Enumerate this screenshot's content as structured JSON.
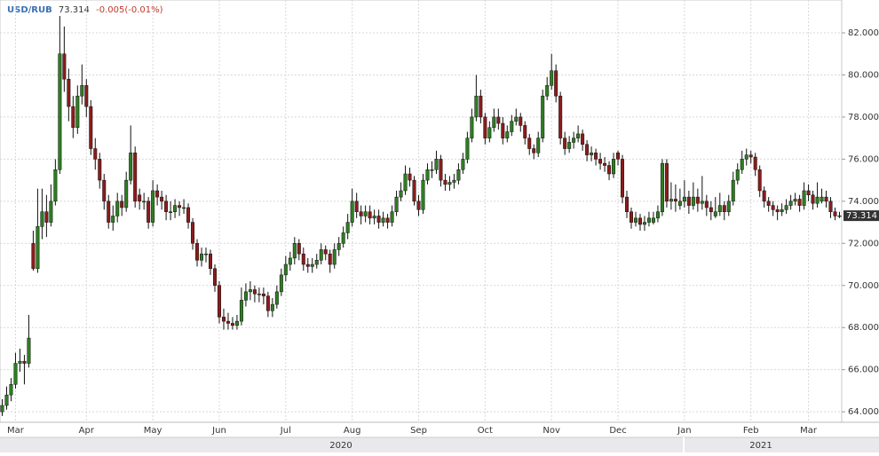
{
  "chart_data": {
    "type": "candlestick",
    "symbol": "USD/RUB",
    "last": 73.314,
    "change": "-0.005(-0.01%)",
    "up_color": "#2e7d22",
    "down_color": "#8a1c1c",
    "wick_color": "#111111",
    "grid": true,
    "ylim": [
      63.5,
      83.56
    ],
    "yticks": [
      {
        "value": 64,
        "label": "64.000"
      },
      {
        "value": 66,
        "label": "66.000"
      },
      {
        "value": 68,
        "label": "68.000"
      },
      {
        "value": 70,
        "label": "70.000"
      },
      {
        "value": 72,
        "label": "72.000"
      },
      {
        "value": 74,
        "label": "74.000"
      },
      {
        "value": 76,
        "label": "76.000"
      },
      {
        "value": 78,
        "label": "78.000"
      },
      {
        "value": 80,
        "label": "80.000"
      },
      {
        "value": 82,
        "label": "82.000"
      }
    ],
    "period_labels": [
      "2020",
      "2021"
    ],
    "categories": [
      null,
      null,
      null,
      "Mar",
      null,
      null,
      null,
      null,
      null,
      null,
      null,
      null,
      null,
      null,
      null,
      null,
      null,
      null,
      null,
      "Apr",
      null,
      null,
      null,
      null,
      null,
      null,
      null,
      null,
      null,
      null,
      null,
      null,
      null,
      null,
      "May",
      null,
      null,
      null,
      null,
      null,
      null,
      null,
      null,
      null,
      null,
      null,
      null,
      null,
      null,
      "Jun",
      null,
      null,
      null,
      null,
      null,
      null,
      null,
      null,
      null,
      null,
      null,
      null,
      null,
      null,
      "Jul",
      null,
      null,
      null,
      null,
      null,
      null,
      null,
      null,
      null,
      null,
      null,
      null,
      null,
      null,
      "Aug",
      null,
      null,
      null,
      null,
      null,
      null,
      null,
      null,
      null,
      null,
      null,
      null,
      null,
      null,
      "Sep",
      null,
      null,
      null,
      null,
      null,
      null,
      null,
      null,
      null,
      null,
      null,
      null,
      null,
      null,
      "Oct",
      null,
      null,
      null,
      null,
      null,
      null,
      null,
      null,
      null,
      null,
      null,
      null,
      null,
      null,
      "Nov",
      null,
      null,
      null,
      null,
      null,
      null,
      null,
      null,
      null,
      null,
      null,
      null,
      null,
      null,
      "Dec",
      null,
      null,
      null,
      null,
      null,
      null,
      null,
      null,
      null,
      null,
      null,
      null,
      null,
      null,
      "Jan",
      null,
      null,
      null,
      null,
      null,
      null,
      null,
      null,
      null,
      null,
      null,
      null,
      null,
      null,
      "Feb",
      null,
      null,
      null,
      null,
      null,
      null,
      null,
      null,
      null,
      null,
      null,
      null,
      "Mar",
      null,
      null,
      null,
      null,
      null,
      null,
      null
    ],
    "ohlc": [
      [
        64.0,
        64.6,
        63.8,
        64.3
      ],
      [
        64.3,
        65.2,
        64.1,
        64.8
      ],
      [
        64.8,
        65.6,
        64.5,
        65.3
      ],
      [
        65.3,
        66.8,
        65.1,
        66.3
      ],
      [
        66.3,
        67.0,
        65.9,
        66.4
      ],
      [
        66.4,
        66.7,
        65.3,
        66.3
      ],
      [
        66.3,
        68.6,
        66.1,
        67.5
      ],
      [
        72.0,
        72.6,
        70.7,
        70.8
      ],
      [
        70.8,
        74.6,
        70.6,
        72.8
      ],
      [
        72.8,
        74.6,
        72.2,
        73.5
      ],
      [
        73.5,
        74.3,
        72.3,
        73.0
      ],
      [
        73.0,
        74.8,
        72.8,
        74.0
      ],
      [
        74.0,
        76.0,
        73.8,
        75.5
      ],
      [
        75.5,
        82.8,
        75.3,
        81.0
      ],
      [
        81.0,
        82.3,
        79.2,
        79.8
      ],
      [
        79.8,
        80.3,
        77.8,
        78.5
      ],
      [
        78.5,
        79.0,
        77.0,
        77.5
      ],
      [
        77.5,
        79.5,
        77.2,
        79.0
      ],
      [
        79.0,
        80.5,
        78.6,
        79.5
      ],
      [
        79.5,
        79.8,
        78.0,
        78.5
      ],
      [
        78.5,
        78.8,
        76.2,
        76.5
      ],
      [
        76.5,
        77.0,
        75.5,
        76.0
      ],
      [
        76.0,
        76.3,
        74.6,
        75.0
      ],
      [
        75.0,
        75.3,
        73.6,
        74.0
      ],
      [
        74.0,
        74.3,
        72.7,
        73.0
      ],
      [
        73.0,
        73.8,
        72.6,
        73.3
      ],
      [
        73.3,
        74.4,
        73.0,
        74.0
      ],
      [
        74.0,
        74.3,
        73.3,
        73.7
      ],
      [
        73.7,
        75.4,
        73.5,
        75.0
      ],
      [
        75.0,
        77.6,
        74.8,
        76.3
      ],
      [
        76.3,
        76.6,
        73.7,
        74.0
      ],
      [
        74.3,
        74.6,
        73.6,
        74.0
      ],
      [
        74.0,
        74.4,
        73.6,
        74.0
      ],
      [
        74.0,
        74.2,
        72.7,
        73.0
      ],
      [
        73.0,
        75.0,
        72.8,
        74.5
      ],
      [
        74.5,
        74.8,
        73.8,
        74.2
      ],
      [
        74.2,
        74.5,
        73.6,
        74.0
      ],
      [
        74.0,
        74.3,
        73.1,
        73.5
      ],
      [
        73.5,
        74.0,
        73.1,
        73.5
      ],
      [
        73.5,
        74.1,
        73.2,
        73.8
      ],
      [
        73.8,
        74.0,
        73.3,
        73.7
      ],
      [
        73.7,
        74.1,
        73.4,
        73.7
      ],
      [
        73.7,
        73.9,
        72.7,
        73.0
      ],
      [
        73.0,
        73.2,
        71.7,
        72.0
      ],
      [
        72.0,
        72.2,
        70.9,
        71.2
      ],
      [
        71.2,
        71.8,
        70.9,
        71.5
      ],
      [
        71.5,
        71.8,
        71.1,
        71.5
      ],
      [
        71.5,
        71.7,
        70.5,
        70.8
      ],
      [
        70.8,
        71.0,
        69.7,
        70.0
      ],
      [
        70.0,
        70.2,
        68.2,
        68.5
      ],
      [
        68.5,
        68.9,
        67.9,
        68.3
      ],
      [
        68.3,
        68.7,
        67.9,
        68.2
      ],
      [
        68.2,
        68.5,
        67.9,
        68.1
      ],
      [
        68.1,
        68.6,
        67.9,
        68.3
      ],
      [
        68.3,
        69.9,
        68.1,
        69.3
      ],
      [
        69.3,
        70.1,
        69.0,
        69.7
      ],
      [
        69.7,
        70.2,
        69.3,
        69.8
      ],
      [
        69.8,
        70.0,
        69.2,
        69.6
      ],
      [
        69.6,
        69.9,
        69.2,
        69.6
      ],
      [
        69.6,
        69.9,
        69.1,
        69.5
      ],
      [
        69.5,
        69.7,
        68.5,
        68.8
      ],
      [
        68.8,
        69.4,
        68.5,
        69.1
      ],
      [
        69.1,
        70.0,
        68.9,
        69.7
      ],
      [
        69.7,
        70.8,
        69.5,
        70.5
      ],
      [
        70.5,
        71.4,
        70.2,
        71.0
      ],
      [
        71.0,
        71.6,
        70.7,
        71.3
      ],
      [
        71.3,
        72.3,
        71.0,
        72.0
      ],
      [
        72.0,
        72.2,
        71.2,
        71.5
      ],
      [
        71.5,
        71.8,
        70.7,
        71.0
      ],
      [
        71.0,
        71.3,
        70.6,
        70.9
      ],
      [
        70.9,
        71.3,
        70.6,
        71.0
      ],
      [
        71.0,
        71.5,
        70.8,
        71.2
      ],
      [
        71.2,
        72.0,
        71.0,
        71.7
      ],
      [
        71.7,
        71.9,
        71.2,
        71.5
      ],
      [
        71.5,
        71.7,
        70.6,
        71.0
      ],
      [
        71.0,
        72.0,
        70.8,
        71.7
      ],
      [
        71.7,
        72.3,
        71.4,
        72.0
      ],
      [
        72.0,
        72.8,
        71.8,
        72.5
      ],
      [
        72.5,
        73.4,
        72.2,
        73.0
      ],
      [
        73.0,
        74.6,
        72.8,
        74.0
      ],
      [
        74.0,
        74.4,
        73.2,
        73.5
      ],
      [
        73.5,
        73.8,
        72.9,
        73.3
      ],
      [
        73.3,
        73.8,
        73.0,
        73.5
      ],
      [
        73.5,
        73.8,
        72.9,
        73.2
      ],
      [
        73.2,
        73.6,
        72.9,
        73.3
      ],
      [
        73.3,
        73.6,
        72.7,
        73.0
      ],
      [
        73.0,
        73.5,
        72.8,
        73.2
      ],
      [
        73.2,
        73.4,
        72.7,
        73.0
      ],
      [
        73.0,
        73.8,
        72.8,
        73.5
      ],
      [
        73.5,
        74.5,
        73.3,
        74.2
      ],
      [
        74.2,
        74.9,
        74.0,
        74.5
      ],
      [
        74.5,
        75.7,
        74.3,
        75.3
      ],
      [
        75.3,
        75.6,
        74.7,
        75.0
      ],
      [
        75.0,
        75.2,
        73.8,
        74.0
      ],
      [
        74.0,
        74.3,
        73.3,
        73.6
      ],
      [
        73.6,
        75.3,
        73.4,
        75.0
      ],
      [
        75.0,
        75.8,
        74.8,
        75.5
      ],
      [
        75.5,
        75.9,
        75.1,
        75.5
      ],
      [
        75.5,
        76.4,
        75.3,
        76.0
      ],
      [
        76.0,
        76.2,
        74.7,
        75.0
      ],
      [
        75.0,
        75.3,
        74.5,
        74.8
      ],
      [
        74.8,
        75.2,
        74.5,
        74.9
      ],
      [
        74.9,
        75.3,
        74.6,
        75.0
      ],
      [
        75.0,
        75.8,
        74.8,
        75.5
      ],
      [
        75.5,
        76.3,
        75.3,
        76.0
      ],
      [
        76.0,
        77.3,
        75.8,
        77.0
      ],
      [
        77.0,
        78.4,
        76.8,
        78.0
      ],
      [
        78.0,
        80.0,
        77.8,
        79.0
      ],
      [
        79.0,
        79.3,
        77.7,
        78.0
      ],
      [
        78.0,
        78.2,
        76.7,
        77.0
      ],
      [
        77.0,
        77.8,
        76.8,
        77.5
      ],
      [
        77.5,
        78.4,
        77.3,
        78.0
      ],
      [
        78.0,
        78.4,
        77.4,
        77.7
      ],
      [
        77.7,
        78.0,
        76.7,
        77.0
      ],
      [
        77.0,
        77.6,
        76.8,
        77.3
      ],
      [
        77.3,
        78.1,
        77.1,
        77.8
      ],
      [
        77.8,
        78.4,
        77.6,
        78.0
      ],
      [
        78.0,
        78.2,
        77.3,
        77.6
      ],
      [
        77.6,
        77.8,
        76.7,
        77.0
      ],
      [
        77.0,
        77.2,
        76.2,
        76.5
      ],
      [
        76.5,
        76.7,
        76.0,
        76.3
      ],
      [
        76.3,
        77.3,
        76.1,
        77.0
      ],
      [
        77.0,
        79.3,
        76.8,
        79.0
      ],
      [
        79.0,
        79.9,
        78.8,
        79.5
      ],
      [
        79.5,
        81.0,
        79.3,
        80.2
      ],
      [
        80.2,
        80.5,
        78.7,
        79.0
      ],
      [
        79.0,
        79.2,
        76.7,
        77.0
      ],
      [
        77.0,
        77.3,
        76.2,
        76.5
      ],
      [
        76.5,
        77.1,
        76.3,
        76.8
      ],
      [
        76.8,
        77.3,
        76.5,
        77.0
      ],
      [
        77.0,
        77.6,
        76.8,
        77.2
      ],
      [
        77.2,
        77.4,
        76.4,
        76.7
      ],
      [
        76.7,
        76.9,
        75.9,
        76.2
      ],
      [
        76.2,
        76.6,
        75.9,
        76.3
      ],
      [
        76.3,
        76.5,
        75.7,
        76.0
      ],
      [
        76.0,
        76.3,
        75.5,
        75.8
      ],
      [
        75.8,
        76.1,
        75.4,
        75.7
      ],
      [
        75.7,
        75.9,
        75.0,
        75.3
      ],
      [
        75.3,
        76.3,
        75.1,
        76.0
      ],
      [
        76.3,
        76.4,
        75.7,
        76.0
      ],
      [
        76.0,
        76.2,
        73.9,
        74.2
      ],
      [
        74.2,
        74.5,
        73.2,
        73.5
      ],
      [
        73.5,
        73.7,
        72.7,
        73.0
      ],
      [
        73.0,
        73.5,
        72.8,
        73.2
      ],
      [
        73.2,
        73.4,
        72.6,
        72.9
      ],
      [
        72.9,
        73.3,
        72.6,
        73.0
      ],
      [
        73.0,
        73.5,
        72.8,
        73.2
      ],
      [
        73.0,
        73.5,
        72.9,
        73.2
      ],
      [
        73.2,
        73.8,
        73.0,
        73.5
      ],
      [
        73.5,
        76.0,
        73.3,
        75.8
      ],
      [
        75.8,
        76.0,
        73.7,
        74.0
      ],
      [
        74.0,
        74.9,
        73.6,
        74.1
      ],
      [
        74.1,
        74.8,
        73.5,
        74.0
      ],
      [
        73.8,
        74.6,
        73.6,
        74.0
      ],
      [
        74.0,
        75.0,
        73.7,
        74.2
      ],
      [
        74.2,
        74.5,
        73.4,
        73.8
      ],
      [
        73.8,
        74.9,
        73.6,
        74.2
      ],
      [
        74.2,
        74.6,
        73.5,
        73.9
      ],
      [
        73.9,
        75.2,
        73.6,
        74.0
      ],
      [
        74.0,
        74.3,
        73.3,
        73.7
      ],
      [
        73.7,
        74.0,
        73.1,
        73.5
      ],
      [
        73.3,
        74.2,
        73.2,
        73.5
      ],
      [
        73.5,
        74.4,
        73.3,
        73.8
      ],
      [
        73.8,
        74.0,
        73.1,
        73.5
      ],
      [
        73.5,
        74.3,
        73.3,
        74.0
      ],
      [
        74.0,
        75.4,
        73.8,
        75.0
      ],
      [
        75.0,
        75.8,
        74.8,
        75.5
      ],
      [
        75.5,
        76.4,
        75.3,
        76.0
      ],
      [
        76.0,
        76.5,
        75.7,
        76.2
      ],
      [
        76.2,
        76.4,
        75.8,
        76.1
      ],
      [
        76.1,
        76.3,
        75.2,
        75.5
      ],
      [
        75.5,
        75.7,
        74.2,
        74.5
      ],
      [
        74.5,
        74.7,
        73.7,
        74.0
      ],
      [
        74.0,
        74.2,
        73.5,
        73.8
      ],
      [
        73.8,
        74.0,
        73.3,
        73.6
      ],
      [
        73.6,
        73.8,
        73.1,
        73.5
      ],
      [
        73.5,
        73.9,
        73.3,
        73.6
      ],
      [
        73.6,
        74.1,
        73.4,
        73.8
      ],
      [
        73.8,
        74.3,
        73.6,
        74.0
      ],
      [
        74.0,
        74.4,
        73.8,
        74.1
      ],
      [
        74.1,
        74.3,
        73.5,
        73.8
      ],
      [
        73.8,
        74.9,
        73.6,
        74.5
      ],
      [
        74.5,
        74.8,
        74.0,
        74.3
      ],
      [
        74.3,
        74.5,
        73.6,
        73.9
      ],
      [
        73.9,
        74.9,
        73.7,
        74.2
      ],
      [
        74.0,
        74.6,
        73.9,
        74.2
      ],
      [
        74.2,
        74.5,
        73.7,
        74.0
      ],
      [
        74.0,
        74.2,
        73.2,
        73.5
      ],
      [
        73.5,
        73.7,
        73.1,
        73.3
      ],
      [
        73.3,
        73.5,
        73.2,
        73.314
      ]
    ]
  }
}
